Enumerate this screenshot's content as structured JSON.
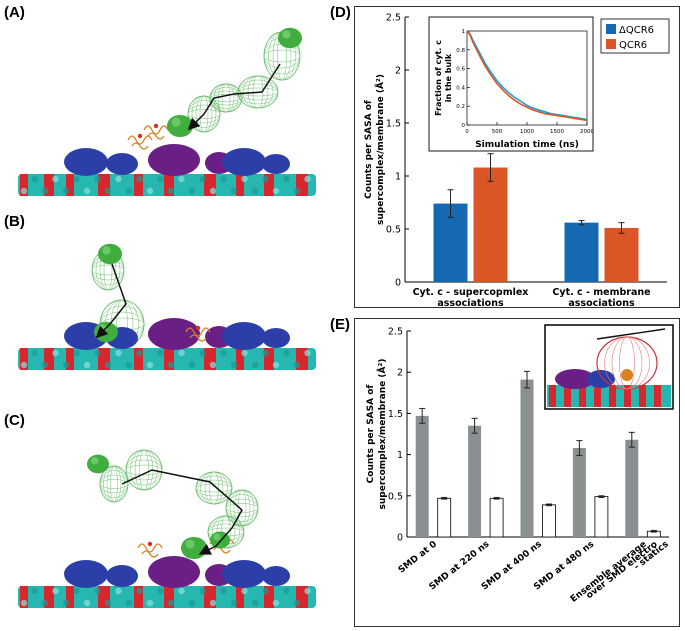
{
  "panel_labels": {
    "a": "(A)",
    "b": "(B)",
    "c": "(C)",
    "d": "(D)",
    "e": "(E)"
  },
  "colors": {
    "membrane_red": "#d8262f",
    "membrane_teal": "#26b8b0",
    "complex_blue": "#2c3fa8",
    "complex_purple": "#6a1f86",
    "cytc_green": "#3fae3f",
    "cytc_mesh": "#6fbf70",
    "lipid_orange": "#d9821e",
    "bar_blue": "#1668b1",
    "bar_orange": "#dc5527",
    "bar_gray": "#8a8f92",
    "bar_white": "#ffffff"
  },
  "chart_data": [
    {
      "id": "D",
      "type": "bar",
      "ylabel": "Counts per SASA of supercomplex/membrane (Å²)",
      "ylabel_lines": [
        "Counts per SASA of",
        "supercomplex/membrane (Å²)"
      ],
      "ylim": [
        0,
        2.5
      ],
      "yticks": [
        0,
        0.5,
        1,
        1.5,
        2,
        2.5
      ],
      "ytick_labels": [
        "0",
        "0.5",
        "1",
        "1.5",
        "2",
        "2.5"
      ],
      "categories": [
        "Cyt. c - supercopmlex associations",
        "Cyt. c - membrane associations"
      ],
      "category_lines": [
        [
          "Cyt. c - supercopmlex",
          "associations"
        ],
        [
          "Cyt. c - membrane",
          "associations"
        ]
      ],
      "legend_position": "top-right",
      "series": [
        {
          "name": "ΔQCR6",
          "color": "#1668b1",
          "values": [
            0.74,
            0.56
          ],
          "errors": [
            0.13,
            0.02
          ]
        },
        {
          "name": "QCR6",
          "color": "#dc5527",
          "values": [
            1.08,
            0.51
          ],
          "errors": [
            0.13,
            0.05
          ]
        }
      ],
      "inset": {
        "type": "line",
        "xlabel": "Simulation time (ns)",
        "ylabel_lines": [
          "Fraction of cyt. c",
          "in the bulk"
        ],
        "xlim": [
          0,
          2000
        ],
        "ylim": [
          0,
          1
        ],
        "xticks": [
          0,
          500,
          1000,
          1500,
          2000
        ],
        "xtick_labels": [
          "0",
          "500",
          "1000",
          "1500",
          "2000"
        ],
        "yticks": [
          0,
          0.2,
          0.4,
          0.6,
          0.8,
          1
        ],
        "ytick_labels": [
          "0",
          "0.2",
          "0.4",
          "0.6",
          "0.8",
          "1"
        ],
        "series": [
          {
            "name": "ΔQCR6",
            "color": "#1aa0dc",
            "x": [
              0,
              50,
              100,
              200,
              300,
              400,
              500,
              600,
              700,
              800,
              900,
              1000,
              1100,
              1200,
              1300,
              1400,
              1500,
              1600,
              1700,
              1800,
              1900,
              2000
            ],
            "y": [
              1.0,
              0.97,
              0.9,
              0.78,
              0.66,
              0.56,
              0.47,
              0.4,
              0.34,
              0.29,
              0.25,
              0.21,
              0.18,
              0.16,
              0.14,
              0.12,
              0.11,
              0.1,
              0.09,
              0.08,
              0.07,
              0.06
            ]
          },
          {
            "name": "QCR6",
            "color": "#dc5527",
            "x": [
              0,
              50,
              100,
              200,
              300,
              400,
              500,
              600,
              700,
              800,
              900,
              1000,
              1100,
              1200,
              1300,
              1400,
              1500,
              1600,
              1700,
              1800,
              1900,
              2000
            ],
            "y": [
              1.0,
              0.96,
              0.88,
              0.75,
              0.63,
              0.53,
              0.44,
              0.37,
              0.31,
              0.26,
              0.22,
              0.19,
              0.16,
              0.14,
              0.12,
              0.11,
              0.1,
              0.09,
              0.08,
              0.07,
              0.06,
              0.05
            ]
          }
        ]
      }
    },
    {
      "id": "E",
      "type": "bar",
      "ylabel": "Counts per SASA of supercomplex/membrane (Å²)",
      "ylabel_lines": [
        "Counts per SASA of",
        "supercomplex/membrane (Å²)"
      ],
      "ylim": [
        0,
        2.5
      ],
      "yticks": [
        0,
        0.5,
        1,
        1.5,
        2,
        2.5
      ],
      "ytick_labels": [
        "0",
        "0.5",
        "1",
        "1.5",
        "2",
        "2.5"
      ],
      "categories": [
        "SMD at 0",
        "SMD at 220 ns",
        "SMD at 400 ns",
        "SMD at 480 ns",
        "Ensemble average over SMD electro - statics"
      ],
      "category_lines": [
        [
          "SMD at 0"
        ],
        [
          "SMD at 220 ns"
        ],
        [
          "SMD at 400 ns"
        ],
        [
          "SMD at 480 ns"
        ],
        [
          "Ensemble average",
          "over SMD electro",
          "- statics"
        ]
      ],
      "series": [
        {
          "color": "#8a8f92",
          "values": [
            1.47,
            1.35,
            1.91,
            1.08,
            1.18
          ],
          "errors": [
            0.09,
            0.09,
            0.1,
            0.09,
            0.09
          ]
        },
        {
          "color": "#ffffff",
          "values": [
            0.47,
            0.47,
            0.39,
            0.49,
            0.07
          ],
          "errors": [
            0.01,
            0.01,
            0.01,
            0.01,
            0.01
          ]
        }
      ]
    }
  ]
}
